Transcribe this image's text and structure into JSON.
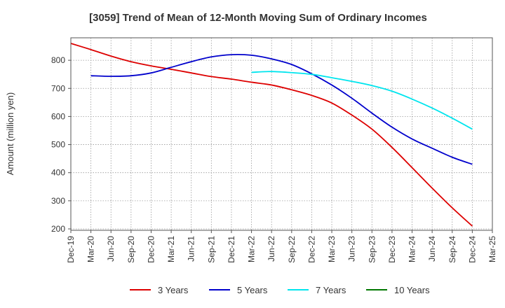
{
  "chart_data": {
    "type": "line",
    "title": "[3059]  Trend of Mean of 12-Month Moving Sum of Ordinary Incomes",
    "xlabel": "",
    "ylabel": "Amount (million yen)",
    "ylim": [
      195,
      880
    ],
    "yticks": [
      200,
      300,
      400,
      500,
      600,
      700,
      800
    ],
    "categories": [
      "Dec-19",
      "Mar-20",
      "Jun-20",
      "Sep-20",
      "Dec-20",
      "Mar-21",
      "Jun-21",
      "Sep-21",
      "Dec-21",
      "Mar-22",
      "Jun-22",
      "Sep-22",
      "Dec-22",
      "Mar-23",
      "Jun-23",
      "Sep-23",
      "Dec-23",
      "Mar-24",
      "Jun-24",
      "Sep-24",
      "Dec-24",
      "Mar-25"
    ],
    "grid": true,
    "legend_position": "bottom",
    "series": [
      {
        "name": "3 Years",
        "color": "#dd0000",
        "values": [
          860,
          838,
          815,
          795,
          780,
          768,
          755,
          742,
          733,
          722,
          712,
          695,
          675,
          648,
          605,
          555,
          490,
          418,
          345,
          275,
          210,
          null
        ]
      },
      {
        "name": "5 Years",
        "color": "#0000cc",
        "values": [
          null,
          745,
          743,
          745,
          755,
          775,
          795,
          812,
          820,
          818,
          805,
          785,
          752,
          712,
          665,
          612,
          562,
          520,
          487,
          455,
          430,
          null
        ]
      },
      {
        "name": "7 Years",
        "color": "#00e5ee",
        "values": [
          null,
          null,
          null,
          null,
          null,
          null,
          null,
          null,
          null,
          757,
          760,
          756,
          750,
          738,
          725,
          710,
          690,
          662,
          630,
          594,
          555,
          null
        ]
      },
      {
        "name": "10 Years",
        "color": "#007700",
        "values": [
          null,
          null,
          null,
          null,
          null,
          null,
          null,
          null,
          null,
          null,
          null,
          null,
          null,
          null,
          null,
          null,
          null,
          null,
          null,
          null,
          null,
          null
        ]
      }
    ]
  }
}
